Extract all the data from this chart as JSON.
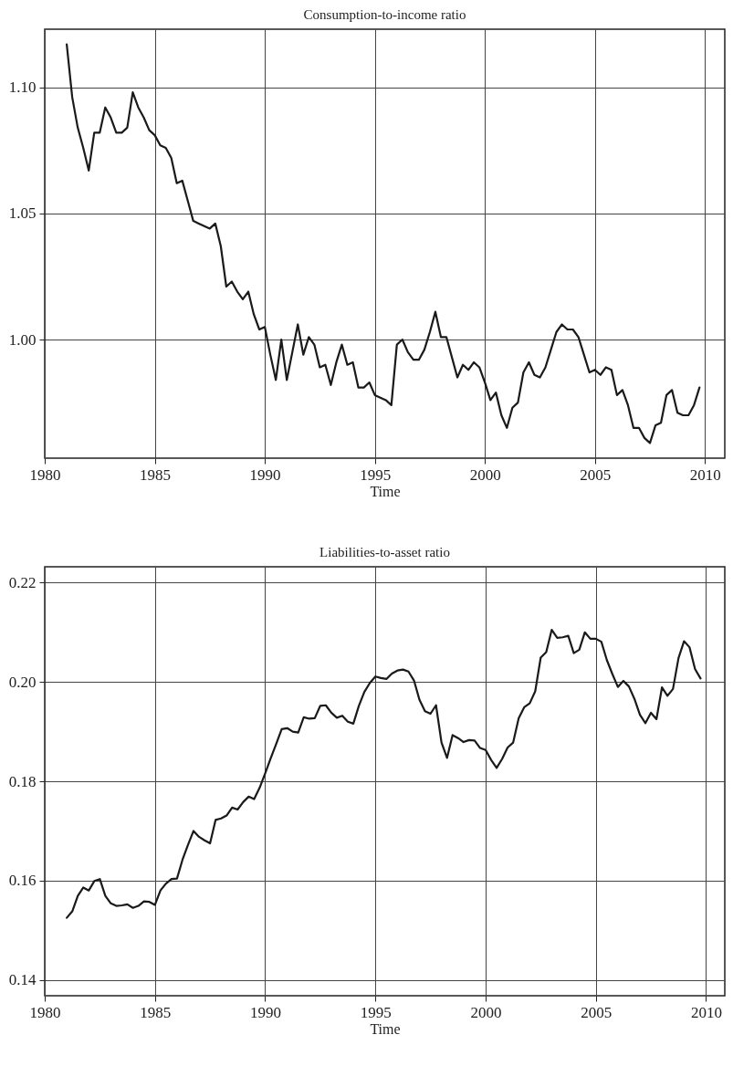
{
  "chart_data": [
    {
      "type": "line",
      "title": "Consumption-to-income ratio",
      "xlabel": "Time",
      "x": [
        1981,
        1981.25,
        1981.5,
        1981.75,
        1982,
        1982.25,
        1982.5,
        1982.75,
        1983,
        1983.25,
        1983.5,
        1983.75,
        1984,
        1984.25,
        1984.5,
        1984.75,
        1985,
        1985.25,
        1985.5,
        1985.75,
        1986,
        1986.25,
        1986.5,
        1986.75,
        1987,
        1987.25,
        1987.5,
        1987.75,
        1988,
        1988.25,
        1988.5,
        1988.75,
        1989,
        1989.25,
        1989.5,
        1989.75,
        1990,
        1990.25,
        1990.5,
        1990.75,
        1991,
        1991.25,
        1991.5,
        1991.75,
        1992,
        1992.25,
        1992.5,
        1992.75,
        1993,
        1993.25,
        1993.5,
        1993.75,
        1994,
        1994.25,
        1994.5,
        1994.75,
        1995,
        1995.25,
        1995.5,
        1995.75,
        1996,
        1996.25,
        1996.5,
        1996.75,
        1997,
        1997.25,
        1997.5,
        1997.75,
        1998,
        1998.25,
        1998.5,
        1998.75,
        1999,
        1999.25,
        1999.5,
        1999.75,
        2000,
        2000.25,
        2000.5,
        2000.75,
        2001,
        2001.25,
        2001.5,
        2001.75,
        2002,
        2002.25,
        2002.5,
        2002.75,
        2003,
        2003.25,
        2003.5,
        2003.75,
        2004,
        2004.25,
        2004.5,
        2004.75,
        2005,
        2005.25,
        2005.5,
        2005.75,
        2006,
        2006.25,
        2006.5,
        2006.75,
        2007,
        2007.25,
        2007.5,
        2007.75,
        2008,
        2008.25,
        2008.5,
        2008.75,
        2009,
        2009.25,
        2009.5,
        2009.75
      ],
      "series": [
        {
          "color": "#1a1a1a",
          "values": [
            1.117,
            1.096,
            1.084,
            1.076,
            1.067,
            1.082,
            1.082,
            1.092,
            1.088,
            1.082,
            1.082,
            1.084,
            1.098,
            1.092,
            1.088,
            1.083,
            1.081,
            1.077,
            1.076,
            1.072,
            1.062,
            1.063,
            1.055,
            1.047,
            1.046,
            1.045,
            1.044,
            1.046,
            1.037,
            1.021,
            1.023,
            1.019,
            1.016,
            1.019,
            1.01,
            1.004,
            1.005,
            0.994,
            0.984,
            1.0,
            0.984,
            0.995,
            1.006,
            0.994,
            1.001,
            0.998,
            0.989,
            0.99,
            0.982,
            0.991,
            0.998,
            0.99,
            0.991,
            0.981,
            0.981,
            0.983,
            0.978,
            0.977,
            0.976,
            0.974,
            0.998,
            1.0,
            0.995,
            0.992,
            0.992,
            0.996,
            1.003,
            1.011,
            1.001,
            1.001,
            0.993,
            0.985,
            0.99,
            0.988,
            0.991,
            0.989,
            0.983,
            0.976,
            0.979,
            0.97,
            0.965,
            0.973,
            0.975,
            0.987,
            0.991,
            0.986,
            0.985,
            0.989,
            0.996,
            1.003,
            1.006,
            1.004,
            1.004,
            1.001,
            0.994,
            0.987,
            0.988,
            0.986,
            0.989,
            0.988,
            0.978,
            0.98,
            0.974,
            0.965,
            0.965,
            0.961,
            0.959,
            0.966,
            0.967,
            0.978,
            0.98,
            0.971,
            0.97,
            0.97,
            0.974,
            0.981
          ]
        }
      ],
      "xlim": [
        1980,
        2010.9
      ],
      "xticks": [
        1980,
        1985,
        1990,
        1995,
        2000,
        2005,
        2010
      ],
      "ylim": [
        0.953,
        1.123
      ],
      "yticks": [
        {
          "value": 1.0,
          "label": "1.00"
        },
        1.05,
        {
          "value": 1.1,
          "label": "1.10"
        }
      ],
      "grid": true,
      "line_style": "solid"
    },
    {
      "type": "line",
      "title": "Liabilities-to-asset ratio",
      "xlabel": "Time",
      "x": [
        1981,
        1981.25,
        1981.5,
        1981.75,
        1982,
        1982.25,
        1982.5,
        1982.75,
        1983,
        1983.25,
        1983.5,
        1983.75,
        1984,
        1984.25,
        1984.5,
        1984.75,
        1985,
        1985.25,
        1985.5,
        1985.75,
        1986,
        1986.25,
        1986.5,
        1986.75,
        1987,
        1987.25,
        1987.5,
        1987.75,
        1988,
        1988.25,
        1988.5,
        1988.75,
        1989,
        1989.25,
        1989.5,
        1989.75,
        1990,
        1990.25,
        1990.5,
        1990.75,
        1991,
        1991.25,
        1991.5,
        1991.75,
        1992,
        1992.25,
        1992.5,
        1992.75,
        1993,
        1993.25,
        1993.5,
        1993.75,
        1994,
        1994.25,
        1994.5,
        1994.75,
        1995,
        1995.25,
        1995.5,
        1995.75,
        1996,
        1996.25,
        1996.5,
        1996.75,
        1997,
        1997.25,
        1997.5,
        1997.75,
        1998,
        1998.25,
        1998.5,
        1998.75,
        1999,
        1999.25,
        1999.5,
        1999.75,
        2000,
        2000.25,
        2000.5,
        2000.75,
        2001,
        2001.25,
        2001.5,
        2001.75,
        2002,
        2002.25,
        2002.5,
        2002.75,
        2003,
        2003.25,
        2003.5,
        2003.75,
        2004,
        2004.25,
        2004.5,
        2004.75,
        2005,
        2005.25,
        2005.5,
        2005.75,
        2006,
        2006.25,
        2006.5,
        2006.75,
        2007,
        2007.25,
        2007.5,
        2007.75,
        2008,
        2008.25,
        2008.5,
        2008.75,
        2009,
        2009.25,
        2009.5,
        2009.75
      ],
      "series": [
        {
          "color": "#1a1a1a",
          "values": [
            0.1525,
            0.1538,
            0.1569,
            0.1586,
            0.158,
            0.1599,
            0.1603,
            0.1569,
            0.1554,
            0.1549,
            0.155,
            0.1552,
            0.1545,
            0.1549,
            0.1558,
            0.1557,
            0.1551,
            0.158,
            0.1594,
            0.1603,
            0.1604,
            0.1642,
            0.1672,
            0.17,
            0.1688,
            0.1681,
            0.1675,
            0.1722,
            0.1725,
            0.1731,
            0.1747,
            0.1743,
            0.1758,
            0.1769,
            0.1764,
            0.1787,
            0.1816,
            0.1846,
            0.1875,
            0.1905,
            0.1907,
            0.19,
            0.1898,
            0.1929,
            0.1926,
            0.1927,
            0.1952,
            0.1953,
            0.1938,
            0.1928,
            0.1932,
            0.192,
            0.1916,
            0.1952,
            0.198,
            0.1998,
            0.2011,
            0.2008,
            0.2006,
            0.2017,
            0.2023,
            0.2025,
            0.2021,
            0.2003,
            0.1964,
            0.1941,
            0.1936,
            0.1953,
            0.1878,
            0.1847,
            0.1893,
            0.1887,
            0.1879,
            0.1883,
            0.1882,
            0.1867,
            0.1863,
            0.1843,
            0.1827,
            0.1845,
            0.1868,
            0.1878,
            0.1927,
            0.1949,
            0.1957,
            0.1981,
            0.2049,
            0.206,
            0.2105,
            0.2089,
            0.209,
            0.2093,
            0.2058,
            0.2065,
            0.21,
            0.2087,
            0.2087,
            0.2081,
            0.2044,
            0.2016,
            0.199,
            0.2002,
            0.1991,
            0.1966,
            0.1934,
            0.1917,
            0.1938,
            0.1925,
            0.1989,
            0.1972,
            0.1986,
            0.2048,
            0.2082,
            0.207,
            0.2026,
            0.2007
          ]
        }
      ],
      "xlim": [
        1980,
        2010.85
      ],
      "xticks": [
        1980,
        1985,
        1990,
        1995,
        2000,
        2005,
        2010
      ],
      "ylim": [
        0.1368,
        0.2232
      ],
      "yticks": [
        0.14,
        0.16,
        0.18,
        {
          "value": 0.2,
          "label": "0.20"
        },
        0.22
      ],
      "grid": true,
      "line_style": "solid"
    }
  ]
}
